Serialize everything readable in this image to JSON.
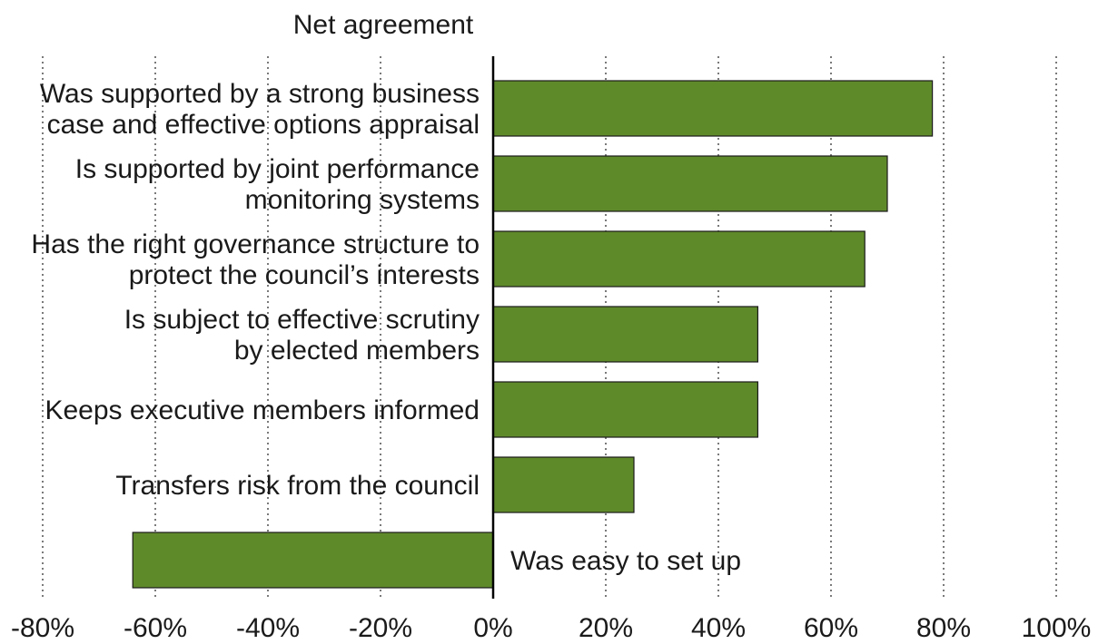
{
  "chart_data": {
    "type": "bar",
    "orientation": "horizontal",
    "title": "Net agreement",
    "categories": [
      [
        "Was supported by a strong business",
        "case and effective options appraisal"
      ],
      [
        "Is supported by joint performance",
        "monitoring systems"
      ],
      [
        "Has the right governance structure to",
        "protect the council’s interests"
      ],
      [
        "Is subject to effective scrutiny",
        "by elected members"
      ],
      [
        "Keeps executive members informed"
      ],
      [
        "Transfers risk from the council"
      ],
      [
        "Was easy to set up"
      ]
    ],
    "values": [
      78,
      70,
      66,
      47,
      47,
      25,
      -64
    ],
    "unit": "%",
    "xlim": [
      -80,
      100
    ],
    "ticks": [
      -80,
      -60,
      -40,
      -20,
      0,
      20,
      40,
      60,
      80,
      100
    ],
    "tick_labels": [
      "-80%",
      "-60%",
      "-40%",
      "-20%",
      "0%",
      "20%",
      "40%",
      "60%",
      "80%",
      "100%"
    ],
    "grid": "vertical dotted",
    "legend": "none",
    "colors": {
      "bar": "#5f8a2a",
      "bar_outline": "#1a1a1a",
      "axis": "#000000"
    }
  }
}
